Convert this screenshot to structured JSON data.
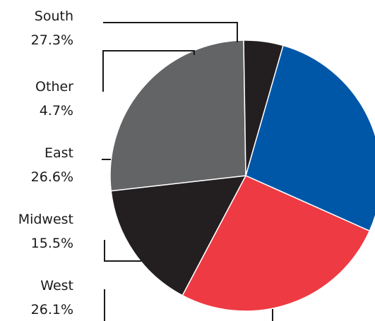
{
  "chart_data": {
    "type": "pie",
    "title": "",
    "slices": [
      {
        "label": "South",
        "percent_label": "27.3%",
        "value": 27.3,
        "color": "#0057a8"
      },
      {
        "label": "West",
        "percent_label": "26.1%",
        "value": 26.1,
        "color": "#ee3a43"
      },
      {
        "label": "Midwest",
        "percent_label": "15.5%",
        "value": 15.5,
        "color": "#231f20"
      },
      {
        "label": "East",
        "percent_label": "26.6%",
        "value": 26.6,
        "color": "#636466"
      },
      {
        "label": "Other",
        "percent_label": "4.7%",
        "value": 4.7,
        "color": "#231f20"
      }
    ],
    "start_angle_deg": 16,
    "direction": "clockwise",
    "legend": "none",
    "slice_separator_color": "#ffffff"
  }
}
